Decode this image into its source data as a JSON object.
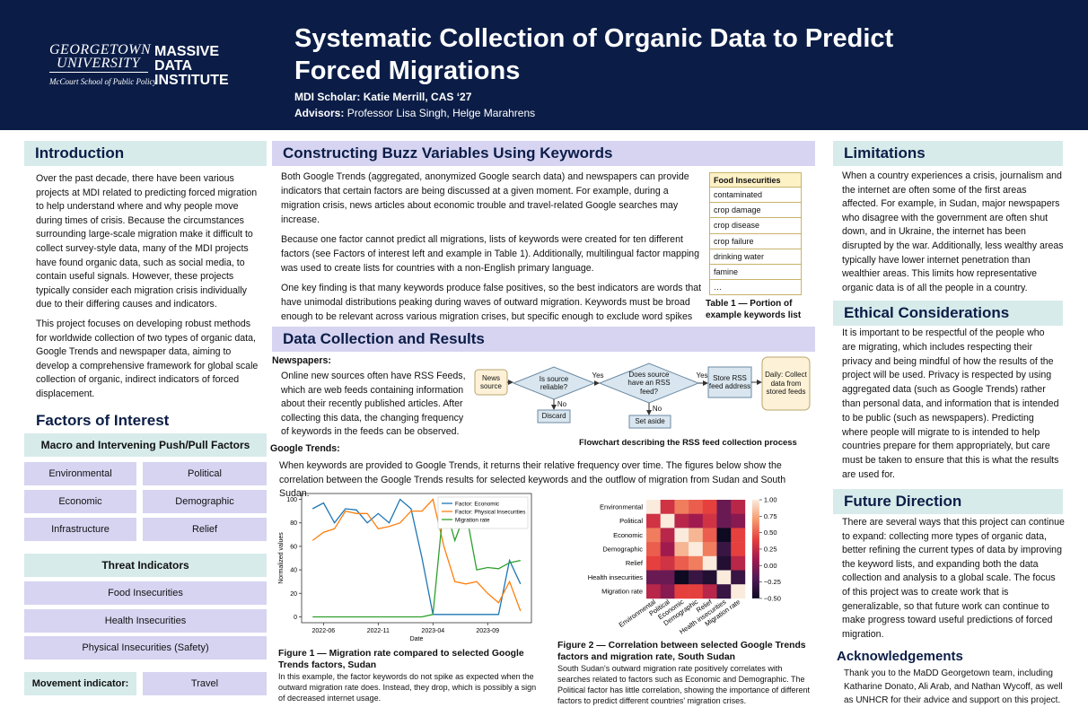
{
  "header": {
    "logo": {
      "university_line1": "GEORGETOWN",
      "university_line2": "UNIVERSITY",
      "school": "McCourt School of Public Policy",
      "institute_line1": "MASSIVE",
      "institute_line2": "DATA",
      "institute_line3": "INSTITUTE"
    },
    "title_line1": "Systematic Collection of Organic Data to Predict",
    "title_line2": "Forced Migrations",
    "scholar_label": "MDI Scholar:",
    "scholar": "Katie Merrill, CAS ‘27",
    "advisors_label": "Advisors:",
    "advisors": "Professor Lisa Singh, Helge Marahrens"
  },
  "introduction": {
    "heading": "Introduction",
    "paragraphs": [
      "Over the past decade, there have been various projects at MDI related to predicting forced migration to help understand where and why people move during times of crisis. Because the circumstances surrounding large-scale migration make it difficult to collect survey-style data, many of the MDI projects have found organic data, such as social media, to contain useful signals. However, these projects typically consider each migration crisis individually due to their differing causes and indicators.",
      "This project focuses on developing robust methods for worldwide collection of two types of organic data, Google Trends and newspaper data, aiming to develop a comprehensive framework for global scale collection of organic, indirect indicators of forced displacement."
    ]
  },
  "factors": {
    "heading": "Factors of Interest",
    "macro_heading": "Macro and Intervening Push/Pull Factors",
    "macro_items": [
      "Environmental",
      "Political",
      "Economic",
      "Demographic",
      "Infrastructure",
      "Relief"
    ],
    "threat_heading": "Threat Indicators",
    "threat_items": [
      "Food Insecurities",
      "Health Insecurities",
      "Physical Insecurities (Safety)"
    ],
    "movement_label": "Movement indicator:",
    "movement_value": "Travel"
  },
  "buzz": {
    "heading": "Constructing Buzz Variables Using Keywords",
    "paragraphs": [
      "Both Google Trends (aggregated, anonymized Google search data) and newspapers can provide indicators that certain factors are being discussed at a given moment. For example, during a migration crisis, news articles about economic trouble and travel-related Google searches may increase.",
      "Because one factor cannot predict all migrations, lists of keywords were created for ten different factors (see Factors of interest left and example in Table 1). Additionally, multilingual factor mapping was used to create lists for countries with a non-English primary language.",
      "One key finding is that many keywords produce false positives, so the best indicators are words that have unimodal distributions peaking during waves of outward migration. Keywords must be broad enough to be relevant across various migration crises, but specific enough to exclude word spikes that are not related to migrations (ie. searches for “charity” may spike near Christmas)."
    ],
    "table": {
      "header": "Food Insecurities",
      "rows": [
        "contaminated",
        "crop damage",
        "crop disease",
        "crop failure",
        "drinking water",
        "famine",
        "…"
      ]
    },
    "table_caption": "Table 1 — Portion of example keywords list"
  },
  "data_collection": {
    "heading": "Data Collection and Results",
    "newspapers_label": "Newspapers:",
    "newspapers_text": "Online new sources often have RSS Feeds, which are web feeds containing information about their recently published articles. After collecting this data, the changing frequency of keywords in the feeds can be observed.",
    "flowchart": {
      "nodes": [
        "News source",
        "Is source reliable?",
        "Does source have an RSS feed?",
        "Store RSS feed address",
        "Daily: Collect data from stored feeds",
        "Discard",
        "Set aside"
      ],
      "edges": [
        "Yes",
        "Yes",
        "No",
        "No"
      ]
    },
    "flowchart_caption": "Flowchart describing the RSS feed collection process",
    "google_label": "Google Trends:",
    "google_text": "When keywords are provided to Google Trends, it returns their relative frequency over time. The figures below show the correlation between the Google Trends results for selected keywords and the outflow of migration from Sudan and South Sudan.",
    "figure1_title": "Figure 1 — Migration rate compared to selected Google Trends factors, Sudan",
    "figure1_text": "In this example, the factor keywords do not spike as expected when the outward migration rate does. Instead, they drop, which is possibly a sign of decreased internet usage.",
    "figure2_title": "Figure 2 — Correlation between selected Google Trends factors and migration rate, South Sudan",
    "figure2_text": "South Sudan's outward migration rate positively correlates with searches related to factors such as Economic and Demographic. The Political factor has little correlation, showing the importance of different factors to predict different countries' migration crises."
  },
  "chart_data": [
    {
      "type": "line",
      "x_label": "Date",
      "y_label": "Normalized values",
      "x": [
        "2022-05",
        "2022-06",
        "2022-07",
        "2022-08",
        "2022-09",
        "2022-10",
        "2022-11",
        "2022-12",
        "2023-01",
        "2023-02",
        "2023-03",
        "2023-04",
        "2023-05",
        "2023-06",
        "2023-07",
        "2023-08",
        "2023-09",
        "2023-10",
        "2023-11",
        "2023-12"
      ],
      "xlim": [
        "2022-04",
        "2024-01"
      ],
      "xticks": [
        "2022-06",
        "2022-11",
        "2023-04",
        "2023-09"
      ],
      "ylim": [
        -5,
        105
      ],
      "yticks": [
        0,
        20,
        40,
        60,
        80,
        100
      ],
      "legend": "upper right",
      "series": [
        {
          "name": "Factor: Economic",
          "color": "#1f77b4",
          "values": [
            92,
            97,
            80,
            92,
            91,
            80,
            88,
            80,
            100,
            92,
            50,
            2,
            2,
            2,
            2,
            2,
            2,
            2,
            48,
            28
          ]
        },
        {
          "name": "Factor: Physical Insecurities",
          "color": "#ff7f0e",
          "values": [
            65,
            72,
            75,
            90,
            88,
            88,
            75,
            77,
            80,
            90,
            90,
            100,
            60,
            30,
            28,
            30,
            20,
            12,
            30,
            5
          ]
        },
        {
          "name": "Migration rate",
          "color": "#2ca02c",
          "values": [
            0,
            0,
            0,
            0,
            0,
            0,
            0,
            0,
            0,
            0,
            0,
            2,
            98,
            65,
            90,
            40,
            42,
            41,
            46,
            48
          ]
        }
      ]
    },
    {
      "type": "heatmap",
      "categories": [
        "Environmental",
        "Political",
        "Economic",
        "Demographic",
        "Relief",
        "Health insecurities",
        "Migration rate"
      ],
      "values": [
        [
          1,
          0.3,
          0.6,
          0.5,
          0.4,
          -0.1,
          0.2
        ],
        [
          0.3,
          1,
          0.2,
          0.1,
          0.3,
          -0.1,
          0.0
        ],
        [
          0.6,
          0.2,
          1,
          0.8,
          0.5,
          -0.5,
          0.4
        ],
        [
          0.5,
          0.1,
          0.8,
          1,
          0.6,
          -0.3,
          0.4
        ],
        [
          0.4,
          0.3,
          0.5,
          0.6,
          1,
          -0.4,
          0.2
        ],
        [
          -0.1,
          -0.1,
          -0.5,
          -0.3,
          -0.4,
          1,
          -0.3
        ],
        [
          0.2,
          0.0,
          0.4,
          0.4,
          0.2,
          -0.3,
          1
        ]
      ],
      "clim": [
        -0.5,
        1
      ],
      "cticks": [
        {
          "value": 1,
          "label": "1.00"
        },
        {
          "value": 0.75,
          "label": "0.75"
        },
        {
          "value": 0.5,
          "label": "0.50"
        },
        {
          "value": 0.25,
          "label": "0.25"
        },
        {
          "value": 0,
          "label": "0.00"
        },
        {
          "value": -0.25,
          "label": "−0.25"
        },
        {
          "value": -0.5,
          "label": "−0.50"
        }
      ],
      "colormap": [
        "#0d0a21",
        "#4f1a55",
        "#a11a4f",
        "#e6403e",
        "#f59b6e",
        "#faebdd"
      ]
    }
  ],
  "limitations": {
    "heading": "Limitations",
    "text": "When a country experiences a crisis, journalism and the internet are often some of the first areas affected. For example, in Sudan, major newspapers who disagree with the government are often shut down, and in Ukraine, the internet has been disrupted by the war. Additionally, less wealthy areas typically have lower internet penetration than wealthier areas. This limits how representative organic data is of all the people in a country."
  },
  "ethics": {
    "heading": "Ethical Considerations",
    "text": "It is important to be respectful of the people who are migrating, which includes respecting their privacy and being mindful of how the results of the project will be used. Privacy is respected by using aggregated data (such as Google Trends) rather than personal data, and information that is intended to be public (such as newspapers). Predicting where people will migrate to is intended to help countries prepare for them appropriately, but care must be taken to ensure that this is what the results are used for."
  },
  "future": {
    "heading": "Future Direction",
    "text": "There are several ways that this project can continue to expand: collecting more types of organic data, better refining the current types of data by improving the keyword lists, and expanding both the data collection and analysis to a global scale. The focus of this project was to create work that is generalizable, so that future work can continue to make progress toward useful predictions of forced migration."
  },
  "acknowledgements": {
    "heading": "Acknowledgements",
    "text": "Thank you to the MaDD Georgetown team, including Katharine Donato, Ali Arab, and Nathan Wycoff, as well as UNHCR for their advice and support on this project."
  }
}
